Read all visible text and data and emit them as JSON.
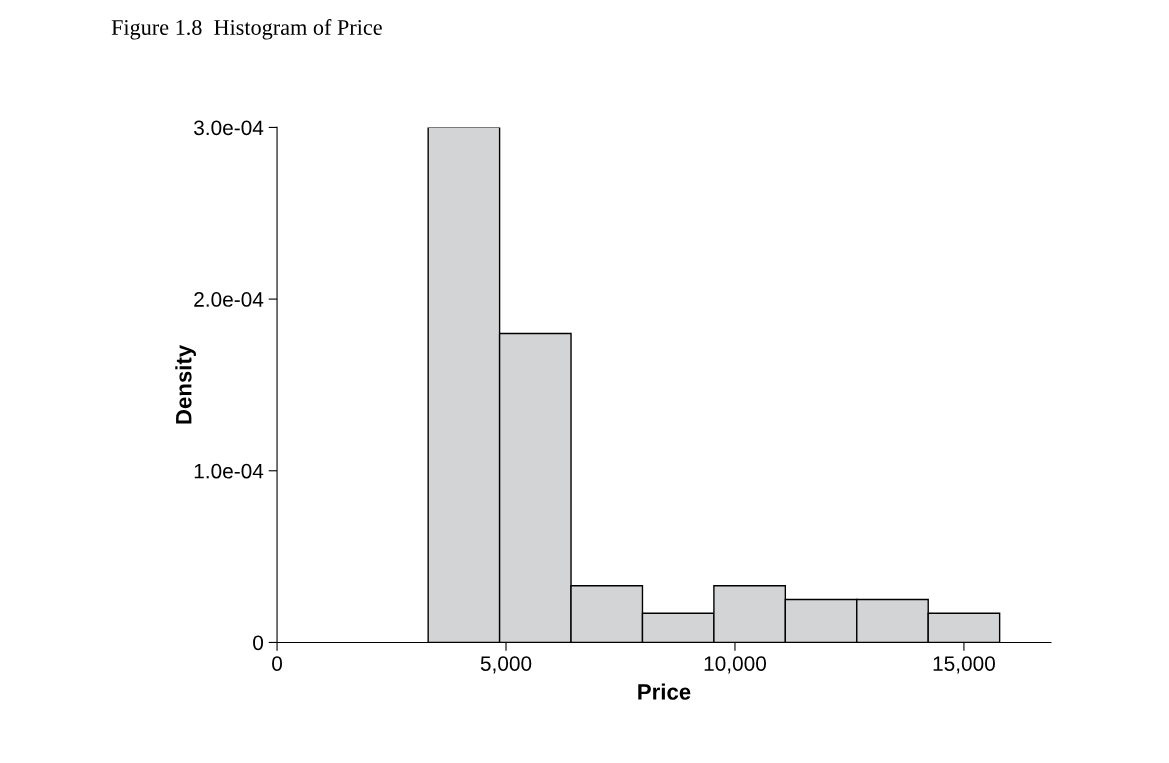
{
  "chart_data": {
    "type": "histogram",
    "title": "Figure 1.8  Histogram of Price",
    "xlabel": "Price",
    "ylabel": "Density",
    "bins": [
      3300,
      4860,
      6420,
      7980,
      9540,
      11100,
      12660,
      14220,
      15780
    ],
    "values": [
      0.0003,
      0.00018,
      3.3e-05,
      1.7e-05,
      3.3e-05,
      2.5e-05,
      2.5e-05,
      1.7e-05
    ],
    "color": "#d3d4d6",
    "xlim": [
      0,
      16900
    ],
    "ylim": [
      0,
      0.0003
    ],
    "xticks": [
      0,
      {
        "value": 5000,
        "label": "5,000"
      },
      {
        "value": 10000,
        "label": "10,000"
      },
      {
        "value": 15000,
        "label": "15,000"
      }
    ],
    "yticks": [
      0,
      {
        "value": 0.0001,
        "label": "1.0e-04"
      },
      {
        "value": 0.0002,
        "label": "2.0e-04"
      },
      {
        "value": 0.0003,
        "label": "3.0e-04"
      }
    ],
    "grid": false
  }
}
